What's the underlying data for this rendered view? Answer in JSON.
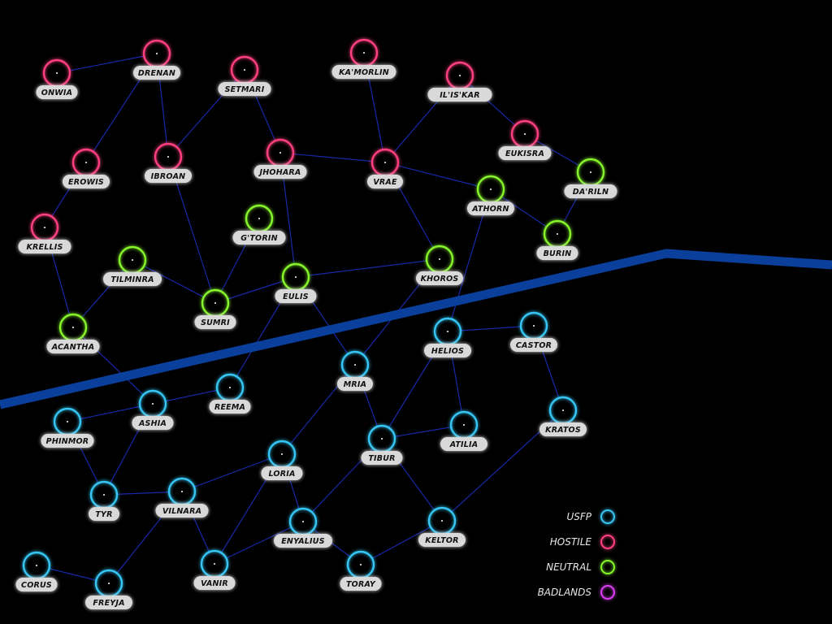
{
  "colors": {
    "USFP": "#35c6f4",
    "HOSTILE": "#ff3f7d",
    "NEUTRAL": "#86f52b",
    "BADLANDS": "#d83ef0",
    "link": "#1a2bb0",
    "border": "#0a3f9c"
  },
  "systems": [
    {
      "id": "onwia",
      "name": "ONWIA",
      "faction": "HOSTILE"
    },
    {
      "id": "drenan",
      "name": "DRENAN",
      "faction": "HOSTILE"
    },
    {
      "id": "setmari",
      "name": "SETMARI",
      "faction": "HOSTILE"
    },
    {
      "id": "kamorlin",
      "name": "KA'MORLIN",
      "faction": "HOSTILE"
    },
    {
      "id": "ilisakar",
      "name": "IL'IS'KAR",
      "faction": "HOSTILE"
    },
    {
      "id": "erowis",
      "name": "EROWIS",
      "faction": "HOSTILE"
    },
    {
      "id": "ibroan",
      "name": "IBROAN",
      "faction": "HOSTILE"
    },
    {
      "id": "jhohara",
      "name": "JHOHARA",
      "faction": "HOSTILE"
    },
    {
      "id": "vrae",
      "name": "VRAE",
      "faction": "HOSTILE"
    },
    {
      "id": "eukisra",
      "name": "EUKISRA",
      "faction": "HOSTILE"
    },
    {
      "id": "krellis",
      "name": "KRELLIS",
      "faction": "HOSTILE"
    },
    {
      "id": "darilin",
      "name": "DA'RILN",
      "faction": "NEUTRAL"
    },
    {
      "id": "athorn",
      "name": "ATHORN",
      "faction": "NEUTRAL"
    },
    {
      "id": "gtorin",
      "name": "G'TORIN",
      "faction": "NEUTRAL"
    },
    {
      "id": "burin",
      "name": "BURIN",
      "faction": "NEUTRAL"
    },
    {
      "id": "tilminra",
      "name": "TILMINRA",
      "faction": "NEUTRAL"
    },
    {
      "id": "eulis",
      "name": "EULIS",
      "faction": "NEUTRAL"
    },
    {
      "id": "khoros",
      "name": "KHOROS",
      "faction": "NEUTRAL"
    },
    {
      "id": "sumri",
      "name": "SUMRI",
      "faction": "NEUTRAL"
    },
    {
      "id": "acantha",
      "name": "ACANTHA",
      "faction": "NEUTRAL"
    },
    {
      "id": "helios",
      "name": "HELIOS",
      "faction": "USFP"
    },
    {
      "id": "castor",
      "name": "CASTOR",
      "faction": "USFP"
    },
    {
      "id": "mria",
      "name": "MRIA",
      "faction": "USFP"
    },
    {
      "id": "reema",
      "name": "REEMA",
      "faction": "USFP"
    },
    {
      "id": "ashia",
      "name": "ASHIA",
      "faction": "USFP"
    },
    {
      "id": "phinmor",
      "name": "PHINMOR",
      "faction": "USFP"
    },
    {
      "id": "kratos",
      "name": "KRATOS",
      "faction": "USFP"
    },
    {
      "id": "atilia",
      "name": "ATILIA",
      "faction": "USFP"
    },
    {
      "id": "tibur",
      "name": "TIBUR",
      "faction": "USFP"
    },
    {
      "id": "loria",
      "name": "LORIA",
      "faction": "USFP"
    },
    {
      "id": "tyr",
      "name": "TYR",
      "faction": "USFP"
    },
    {
      "id": "vilnara",
      "name": "VILNARA",
      "faction": "USFP"
    },
    {
      "id": "enyalius",
      "name": "ENYALIUS",
      "faction": "USFP"
    },
    {
      "id": "keltor",
      "name": "KELTOR",
      "faction": "USFP"
    },
    {
      "id": "corus",
      "name": "CORUS",
      "faction": "USFP"
    },
    {
      "id": "vanir",
      "name": "VANIR",
      "faction": "USFP"
    },
    {
      "id": "toray",
      "name": "TORAY",
      "faction": "USFP"
    },
    {
      "id": "freyja",
      "name": "FREYJA",
      "faction": "USFP"
    }
  ],
  "links": [
    [
      "onwia",
      "drenan"
    ],
    [
      "drenan",
      "erowis"
    ],
    [
      "drenan",
      "ibroan"
    ],
    [
      "setmari",
      "ibroan"
    ],
    [
      "setmari",
      "jhohara"
    ],
    [
      "erowis",
      "krellis"
    ],
    [
      "krellis",
      "acantha"
    ],
    [
      "ibroan",
      "sumri"
    ],
    [
      "jhohara",
      "vrae"
    ],
    [
      "jhohara",
      "eulis"
    ],
    [
      "kamorlin",
      "vrae"
    ],
    [
      "ilisakar",
      "vrae"
    ],
    [
      "ilisakar",
      "eukisra"
    ],
    [
      "eukisra",
      "darilin"
    ],
    [
      "vrae",
      "athorn"
    ],
    [
      "vrae",
      "khoros"
    ],
    [
      "athorn",
      "burin"
    ],
    [
      "darilin",
      "burin"
    ],
    [
      "athorn",
      "helios"
    ],
    [
      "gtorin",
      "sumri"
    ],
    [
      "tilminra",
      "acantha"
    ],
    [
      "tilminra",
      "sumri"
    ],
    [
      "sumri",
      "eulis"
    ],
    [
      "eulis",
      "khoros"
    ],
    [
      "eulis",
      "mria"
    ],
    [
      "eulis",
      "reema"
    ],
    [
      "khoros",
      "mria"
    ],
    [
      "acantha",
      "ashia"
    ],
    [
      "helios",
      "castor"
    ],
    [
      "helios",
      "tibur"
    ],
    [
      "helios",
      "atilia"
    ],
    [
      "castor",
      "kratos"
    ],
    [
      "mria",
      "tibur"
    ],
    [
      "mria",
      "loria"
    ],
    [
      "reema",
      "ashia"
    ],
    [
      "ashia",
      "phinmor"
    ],
    [
      "ashia",
      "tyr"
    ],
    [
      "phinmor",
      "tyr"
    ],
    [
      "tyr",
      "vilnara"
    ],
    [
      "vilnara",
      "loria"
    ],
    [
      "vilnara",
      "vanir"
    ],
    [
      "vilnara",
      "freyja"
    ],
    [
      "loria",
      "enyalius"
    ],
    [
      "loria",
      "vanir"
    ],
    [
      "tibur",
      "atilia"
    ],
    [
      "tibur",
      "enyalius"
    ],
    [
      "tibur",
      "keltor"
    ],
    [
      "kratos",
      "keltor"
    ],
    [
      "keltor",
      "toray"
    ],
    [
      "enyalius",
      "toray"
    ],
    [
      "enyalius",
      "vanir"
    ],
    [
      "corus",
      "freyja"
    ]
  ],
  "legend": [
    {
      "label": "USFP",
      "faction": "USFP"
    },
    {
      "label": "HOSTILE",
      "faction": "HOSTILE"
    },
    {
      "label": "NEUTRAL",
      "faction": "NEUTRAL"
    },
    {
      "label": "BADLANDS",
      "faction": "BADLANDS"
    }
  ]
}
